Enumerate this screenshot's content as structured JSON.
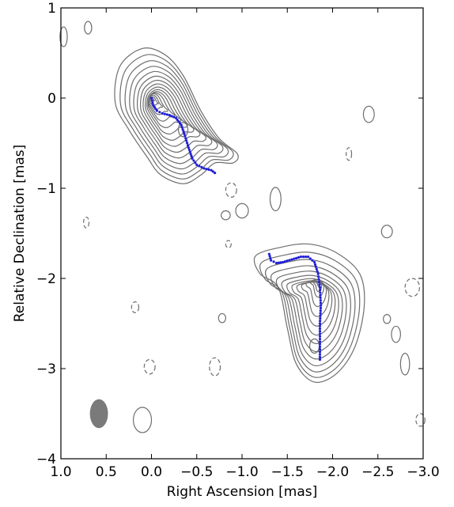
{
  "chart_data": {
    "type": "scatter",
    "title": "",
    "xlabel": "Right Ascension [mas]",
    "ylabel": "Relative Declination [mas]",
    "xlim": [
      1.0,
      -3.0
    ],
    "ylim": [
      -4.0,
      1.0
    ],
    "xticks": [
      "1.0",
      "0.5",
      "0.0",
      "−0.5",
      "−1.0",
      "−1.5",
      "−2.0",
      "−2.5",
      "−3.0"
    ],
    "yticks": [
      "1",
      "0",
      "−1",
      "−2",
      "−3",
      "−4"
    ],
    "xtick_values": [
      1.0,
      0.5,
      0.0,
      -0.5,
      -1.0,
      -1.5,
      -2.0,
      -2.5,
      -3.0
    ],
    "ytick_values": [
      1,
      0,
      -1,
      -2,
      -3,
      -4
    ],
    "grid": false,
    "colors": {
      "contour": "#6e6e6e",
      "ridge": "#1f1fd6",
      "beam": "#7a7a7a"
    },
    "beam": {
      "x": 0.58,
      "y": -3.5,
      "semi_major_mas": 0.16,
      "semi_minor_mas": 0.1
    },
    "components": [
      {
        "name": "",
        "peak": [
          0.0,
          0.0
        ],
        "secondary_peak": [
          -0.35,
          -0.35
        ],
        "outer_contour": [
          [
            0.35,
            0.35
          ],
          [
            0.1,
            0.55
          ],
          [
            -0.15,
            0.48
          ],
          [
            -0.35,
            0.25
          ],
          [
            -0.55,
            -0.15
          ],
          [
            -0.75,
            -0.45
          ],
          [
            -0.95,
            -0.62
          ],
          [
            -0.9,
            -0.72
          ],
          [
            -0.7,
            -0.72
          ],
          [
            -0.55,
            -0.85
          ],
          [
            -0.35,
            -0.95
          ],
          [
            -0.1,
            -0.85
          ],
          [
            0.05,
            -0.65
          ],
          [
            0.25,
            -0.35
          ],
          [
            0.4,
            -0.05
          ]
        ],
        "levels": 16
      },
      {
        "name": "",
        "peak": [
          -1.85,
          -2.05
        ],
        "secondary_peak": [
          -1.8,
          -2.75
        ],
        "outer_contour": [
          [
            -1.45,
            -1.65
          ],
          [
            -1.75,
            -1.62
          ],
          [
            -2.05,
            -1.72
          ],
          [
            -2.3,
            -1.95
          ],
          [
            -2.35,
            -2.3
          ],
          [
            -2.25,
            -2.75
          ],
          [
            -2.05,
            -3.05
          ],
          [
            -1.8,
            -3.15
          ],
          [
            -1.6,
            -2.95
          ],
          [
            -1.5,
            -2.55
          ],
          [
            -1.4,
            -2.1
          ],
          [
            -1.2,
            -1.95
          ],
          [
            -1.15,
            -1.75
          ]
        ],
        "levels": 14
      }
    ],
    "ridge_lines": [
      {
        "name": "",
        "points": [
          [
            0.0,
            0.0
          ],
          [
            -0.02,
            -0.08
          ],
          [
            -0.06,
            -0.14
          ],
          [
            -0.12,
            -0.17
          ],
          [
            -0.2,
            -0.19
          ],
          [
            -0.27,
            -0.22
          ],
          [
            -0.33,
            -0.3
          ],
          [
            -0.37,
            -0.42
          ],
          [
            -0.41,
            -0.55
          ],
          [
            -0.45,
            -0.67
          ],
          [
            -0.5,
            -0.74
          ],
          [
            -0.58,
            -0.78
          ],
          [
            -0.66,
            -0.8
          ],
          [
            -0.7,
            -0.83
          ]
        ]
      },
      {
        "name": "",
        "points": [
          [
            -1.3,
            -1.73
          ],
          [
            -1.32,
            -1.8
          ],
          [
            -1.38,
            -1.83
          ],
          [
            -1.45,
            -1.82
          ],
          [
            -1.55,
            -1.79
          ],
          [
            -1.65,
            -1.76
          ],
          [
            -1.73,
            -1.76
          ],
          [
            -1.8,
            -1.82
          ],
          [
            -1.84,
            -1.95
          ],
          [
            -1.86,
            -2.1
          ],
          [
            -1.87,
            -2.3
          ],
          [
            -1.86,
            -2.5
          ],
          [
            -1.86,
            -2.7
          ],
          [
            -1.86,
            -2.9
          ]
        ]
      }
    ],
    "noise_contours": [
      {
        "style": "solid",
        "center": [
          0.7,
          0.78
        ],
        "rx": 0.04,
        "ry": 0.07
      },
      {
        "style": "dashed",
        "center": [
          -0.88,
          -1.02
        ],
        "rx": 0.06,
        "ry": 0.08
      },
      {
        "style": "solid",
        "center": [
          -1.0,
          -1.25
        ],
        "rx": 0.07,
        "ry": 0.08
      },
      {
        "style": "solid",
        "center": [
          -1.37,
          -1.12
        ],
        "rx": 0.06,
        "ry": 0.13
      },
      {
        "style": "solid",
        "center": [
          -0.82,
          -1.3
        ],
        "rx": 0.05,
        "ry": 0.05
      },
      {
        "style": "dashed",
        "center": [
          -0.85,
          -1.62
        ],
        "rx": 0.03,
        "ry": 0.04
      },
      {
        "style": "dashed",
        "center": [
          0.72,
          -1.38
        ],
        "rx": 0.03,
        "ry": 0.06
      },
      {
        "style": "dashed",
        "center": [
          0.18,
          -2.32
        ],
        "rx": 0.04,
        "ry": 0.06
      },
      {
        "style": "solid",
        "center": [
          -0.78,
          -2.44
        ],
        "rx": 0.04,
        "ry": 0.05
      },
      {
        "style": "dashed",
        "center": [
          0.02,
          -2.98
        ],
        "rx": 0.06,
        "ry": 0.08
      },
      {
        "style": "dashed",
        "center": [
          -0.7,
          -2.98
        ],
        "rx": 0.06,
        "ry": 0.1
      },
      {
        "style": "solid",
        "center": [
          0.1,
          -3.57
        ],
        "rx": 0.1,
        "ry": 0.14
      },
      {
        "style": "solid",
        "center": [
          -2.4,
          -0.18
        ],
        "rx": 0.06,
        "ry": 0.09
      },
      {
        "style": "dashed",
        "center": [
          -2.18,
          -0.62
        ],
        "rx": 0.03,
        "ry": 0.07
      },
      {
        "style": "solid",
        "center": [
          -2.6,
          -1.48
        ],
        "rx": 0.06,
        "ry": 0.07
      },
      {
        "style": "dashed",
        "center": [
          -2.88,
          -2.1
        ],
        "rx": 0.08,
        "ry": 0.1
      },
      {
        "style": "solid",
        "center": [
          -2.6,
          -2.45
        ],
        "rx": 0.04,
        "ry": 0.05
      },
      {
        "style": "solid",
        "center": [
          -2.7,
          -2.62
        ],
        "rx": 0.05,
        "ry": 0.09
      },
      {
        "style": "solid",
        "center": [
          -2.8,
          -2.95
        ],
        "rx": 0.05,
        "ry": 0.12
      },
      {
        "style": "dashed",
        "center": [
          -2.97,
          -3.57
        ],
        "rx": 0.05,
        "ry": 0.07
      },
      {
        "style": "solid",
        "center": [
          0.97,
          0.68
        ],
        "rx": 0.04,
        "ry": 0.11
      }
    ]
  }
}
